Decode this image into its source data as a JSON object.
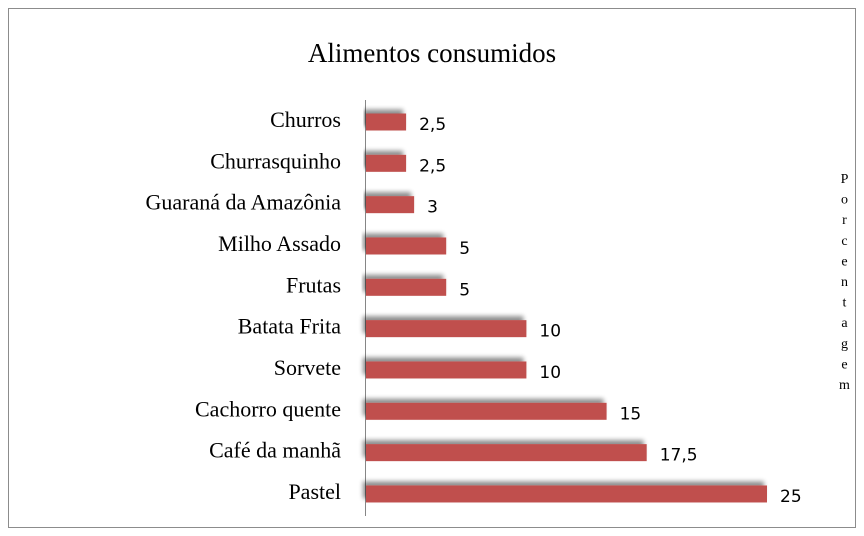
{
  "chart_data": {
    "type": "bar",
    "orientation": "horizontal",
    "title": "Alimentos consumidos",
    "y_axis_label": "Porcentagem",
    "categories": [
      "Churros",
      "Churrasquinho",
      "Guaraná da Amazônia",
      "Milho Assado",
      "Frutas",
      "Batata Frita",
      "Sorvete",
      "Cachorro quente",
      "Café da manhã",
      "Pastel"
    ],
    "values": [
      2.5,
      2.5,
      3,
      5,
      5,
      10,
      10,
      15,
      17.5,
      25
    ],
    "value_labels": [
      "2,5",
      "2,5",
      "3",
      "5",
      "5",
      "10",
      "10",
      "15",
      "17,5",
      "25"
    ],
    "color": "#c0504d",
    "xlim": [
      0,
      25
    ]
  }
}
